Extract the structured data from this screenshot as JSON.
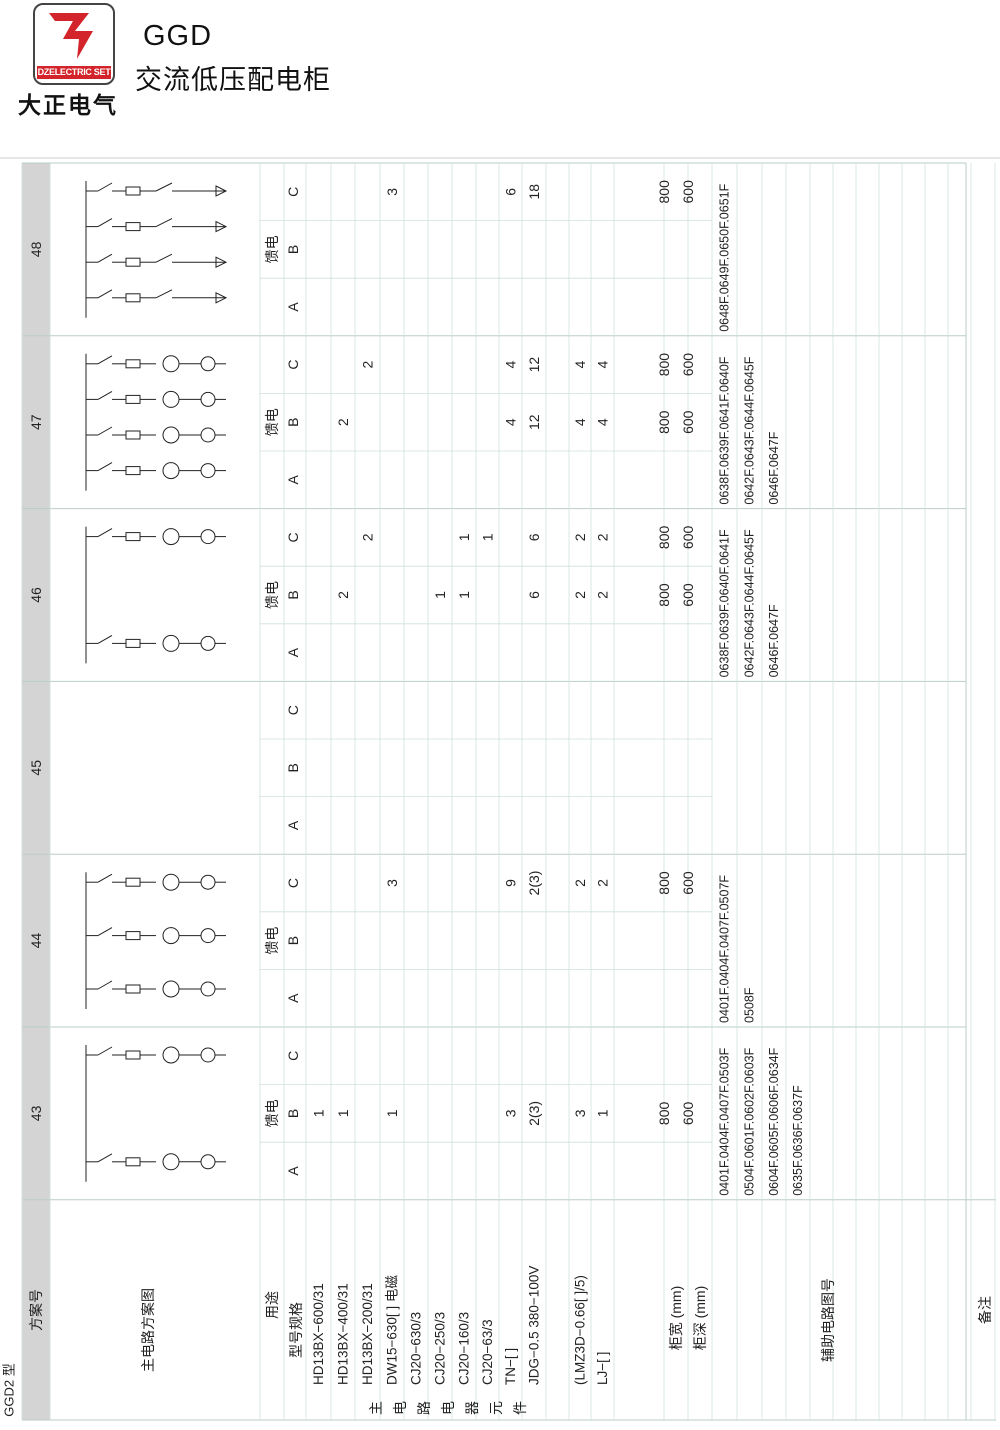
{
  "header": {
    "logo_caption": "DZELECTRIC SET",
    "logo_cn": "大正电气",
    "title_en": "GGD",
    "title_cn": "交流低压配电柜"
  },
  "labels": {
    "model_type": "GGD2 型",
    "scheme_no": "方案号",
    "main_diagram": "主电路方案图",
    "usage": "用途",
    "spec": "型号规格",
    "main_components_chars": [
      "主",
      "电",
      "路",
      "电",
      "器",
      "元",
      "件"
    ],
    "cab_width": "柜宽 (mm)",
    "cab_depth": "柜深 (mm)",
    "aux_diagram": "辅助电路图号",
    "remarks": "备注"
  },
  "spec_rows": [
    "HD13BX−600/31",
    "HD13BX−400/31",
    "HD13BX−200/31",
    "DW15−630[ ] 电磁",
    "CJ20−630/3",
    "CJ20−250/3",
    "CJ20−160/3",
    "CJ20−63/3",
    "TN−[ ]",
    "JDG−0.5 380−100V",
    "",
    "(LMZ3D−0.66[ ]/5)",
    "LJ−[ ]"
  ],
  "schemes": [
    {
      "no": "43",
      "usage": "馈电",
      "subs": [
        "A",
        "B",
        "C"
      ],
      "values": {
        "B": {
          "1": "1",
          "2": "1",
          "4": "1",
          "9": "3",
          "10": "2(3)",
          "12": "3",
          "13": "1"
        }
      },
      "width": {
        "B": "800"
      },
      "depth": {
        "B": "600"
      },
      "aux": [
        "0401F.0404F.0407F.0503F",
        "0504F.0601F.0602F.0603F",
        "0604F.0605F.0606F.0634F",
        "0635F.0636F.0637F"
      ]
    },
    {
      "no": "44",
      "usage": "馈电",
      "subs": [
        "A",
        "B",
        "C"
      ],
      "values": {
        "C": {
          "4": "3",
          "9": "9",
          "10": "2(3)",
          "12": "2",
          "13": "2"
        }
      },
      "width": {
        "C": "800"
      },
      "depth": {
        "C": "600"
      },
      "aux": [
        "0401F.0404F.0407F.0507F",
        "0508F"
      ]
    },
    {
      "no": "45",
      "usage": "",
      "subs": [
        "A",
        "B",
        "C"
      ],
      "values": {},
      "width": {},
      "depth": {},
      "aux": []
    },
    {
      "no": "46",
      "usage": "馈电",
      "subs": [
        "A",
        "B",
        "C"
      ],
      "values": {
        "B": {
          "2": "2",
          "6": "1",
          "7": "1",
          "10": "6",
          "12": "2",
          "13": "2"
        },
        "C": {
          "3": "2",
          "7": "1",
          "8": "1",
          "10": "6",
          "12": "2",
          "13": "2"
        }
      },
      "width": {
        "B": "800",
        "C": "800"
      },
      "depth": {
        "B": "600",
        "C": "600"
      },
      "aux": [
        "0638F.0639F.0640F.0641F",
        "0642F.0643F.0644F.0645F",
        "0646F.0647F"
      ]
    },
    {
      "no": "47",
      "usage": "馈电",
      "subs": [
        "A",
        "B",
        "C"
      ],
      "values": {
        "B": {
          "2": "2",
          "9": "4",
          "10": "12",
          "12": "4",
          "13": "4"
        },
        "C": {
          "3": "2",
          "9": "4",
          "10": "12",
          "12": "4",
          "13": "4"
        }
      },
      "width": {
        "B": "800",
        "C": "800"
      },
      "depth": {
        "B": "600",
        "C": "600"
      },
      "aux": [
        "0638F.0639F.0641F.0640F",
        "0642F.0643F.0644F.0645F",
        "0646F.0647F"
      ]
    },
    {
      "no": "48",
      "usage": "馈电",
      "subs": [
        "A",
        "B",
        "C"
      ],
      "values": {
        "C": {
          "4": "3",
          "9": "6",
          "10": "18"
        }
      },
      "width": {
        "C": "800"
      },
      "depth": {
        "C": "600"
      },
      "aux": [
        "0648F.0649F.0650F.0651F"
      ]
    }
  ],
  "colors": {
    "header_band": "#d4d4d4",
    "grid_line": "#cfe2dc",
    "frame": "#b9cec8",
    "logo_red": "#d2242a"
  }
}
